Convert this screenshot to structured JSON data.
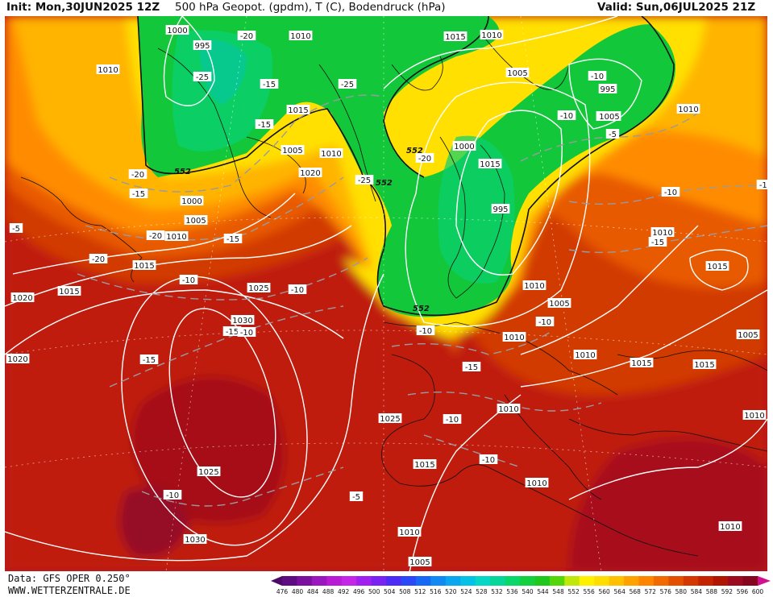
{
  "header": {
    "init": "Init: Mon,30JUN2025 12Z",
    "product": "500 hPa Geopot. (gpdm), T (C), Bodendruck (hPa)",
    "valid": "Valid: Sun,06JUL2025 21Z"
  },
  "footer": {
    "data_source": "Data: GFS OPER 0.250°",
    "website": "WWW.WETTERZENTRALE.DE"
  },
  "colorbar": {
    "ticks": [
      "476",
      "480",
      "484",
      "488",
      "492",
      "496",
      "500",
      "504",
      "508",
      "512",
      "516",
      "520",
      "524",
      "528",
      "532",
      "536",
      "540",
      "544",
      "548",
      "552",
      "556",
      "560",
      "564",
      "568",
      "572",
      "576",
      "580",
      "584",
      "588",
      "592",
      "596",
      "600"
    ],
    "colors": [
      "#4a0a66",
      "#5e0d80",
      "#7a119e",
      "#9a16bd",
      "#b81bd6",
      "#c426e8",
      "#a020f0",
      "#7a22f2",
      "#4c2bf5",
      "#2a48f7",
      "#1768f5",
      "#108af2",
      "#0aa6ef",
      "#06c1e6",
      "#06d6c6",
      "#06d69a",
      "#0ad76a",
      "#12d040",
      "#20c81e",
      "#55d60a",
      "#bfe80a",
      "#fff000",
      "#ffdd00",
      "#ffc000",
      "#ffa200",
      "#ff8400",
      "#f06a00",
      "#e35000",
      "#d43800",
      "#c42400",
      "#b01500",
      "#9c0a20",
      "#86051f",
      "#d20f8c"
    ]
  },
  "map": {
    "geopotential_label": "552",
    "pressure_labels": [
      "1000",
      "1005",
      "1010",
      "1015",
      "1020",
      "1025",
      "1030",
      "995"
    ],
    "temperature_labels": [
      "-5",
      "-10",
      "-15",
      "-20",
      "-25"
    ],
    "pressure_texts": [
      "1005",
      "1000",
      "995",
      "1010",
      "1015",
      "1010",
      "1005",
      "995",
      "1000",
      "1005",
      "1010",
      "1015",
      "1005",
      "1010",
      "1020",
      "1015",
      "1000",
      "995",
      "1000",
      "1005",
      "1010",
      "1015",
      "1020",
      "1015",
      "1020",
      "1025",
      "1030",
      "1025",
      "1030",
      "1025",
      "1015",
      "1010",
      "1010",
      "1010",
      "1005",
      "1010",
      "1010",
      "1015",
      "1015",
      "1005",
      "1010",
      "1005",
      "1010",
      "1010",
      "1015",
      "1010",
      "1010"
    ],
    "temp_texts": [
      "-20",
      "-25",
      "-15",
      "-25",
      "-15",
      "-20",
      "-20",
      "-25",
      "-15",
      "-20",
      "-20",
      "-10",
      "-15",
      "-15",
      "-10",
      "-15",
      "-5",
      "-10",
      "-10",
      "-10",
      "-5",
      "-15",
      "-10",
      "-15",
      "-10",
      "-15",
      "-10",
      "-10",
      "-5",
      "-10",
      "-10"
    ]
  }
}
